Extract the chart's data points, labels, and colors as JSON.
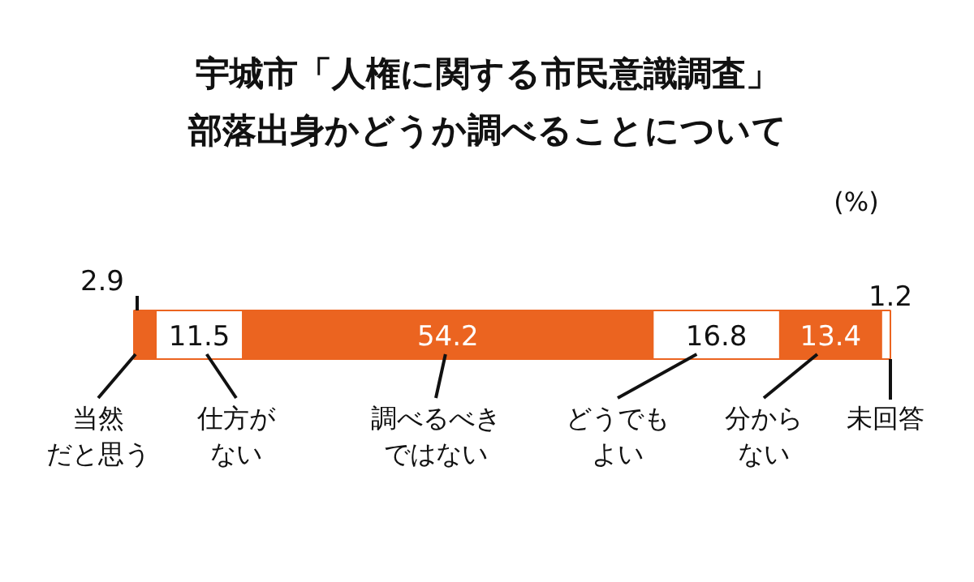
{
  "chart_data": {
    "type": "bar",
    "title": "宇城市「人権に関する市民意識調査」部落出身かどうか調べることについて",
    "orientation": "horizontal",
    "stacked": true,
    "categories": [
      null
    ],
    "data_labels": true,
    "annotations": [
      "(%)"
    ],
    "series": [
      {
        "name": "当然だと思う",
        "color": "#eb6420",
        "values": [
          2.9
        ]
      },
      {
        "name": "仕方がない",
        "color": "#ffffff",
        "values": [
          11.5
        ]
      },
      {
        "name": "調べるべきではない",
        "color": "#eb6420",
        "values": [
          54.2
        ]
      },
      {
        "name": "どうでもよい",
        "color": "#ffffff",
        "values": [
          16.8
        ]
      },
      {
        "name": "分からない",
        "color": "#eb6420",
        "values": [
          13.4
        ]
      },
      {
        "name": "未回答",
        "color": "#ffffff",
        "values": [
          1.2
        ]
      }
    ]
  }
}
